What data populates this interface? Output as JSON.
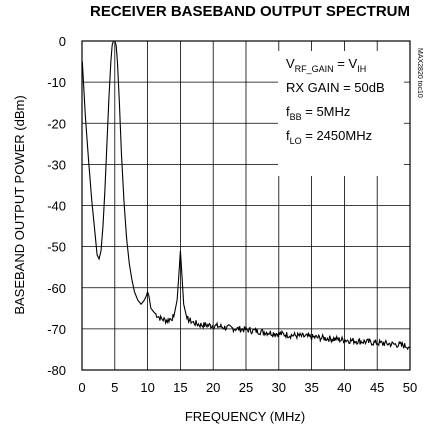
{
  "chart_data": {
    "type": "line",
    "title": "RECEIVER BASEBAND OUTPUT SPECTRUM",
    "xlabel": "FREQUENCY (MHz)",
    "ylabel": "BASEBAND OUTPUT POWER (dBm)",
    "xlim": [
      0,
      50
    ],
    "ylim": [
      -80,
      0
    ],
    "xticks": [
      "0",
      "5",
      "10",
      "15",
      "20",
      "25",
      "30",
      "35",
      "40",
      "45",
      "50"
    ],
    "yticks": [
      "0",
      "-10",
      "-20",
      "-30",
      "-40",
      "-50",
      "-60",
      "-70",
      "-80"
    ],
    "grid": true,
    "annotations": [
      {
        "main": "V",
        "sub": "RF_GAIN",
        "mid": " = V",
        "sub2": "IH",
        "tail": ""
      },
      {
        "main": "RX GAIN = 50dB",
        "sub": "",
        "mid": "",
        "sub2": "",
        "tail": ""
      },
      {
        "main": "f",
        "sub": "BB",
        "mid": " = 5MHz",
        "sub2": "",
        "tail": ""
      },
      {
        "main": "f",
        "sub": "LO",
        "mid": " = 2450MHz",
        "sub2": "",
        "tail": ""
      }
    ],
    "side_label": "MAX2820 toc10",
    "series": [
      {
        "x": [
          0.05,
          0.5,
          1.0,
          1.5,
          2.0,
          2.3,
          2.6,
          2.9,
          3.2,
          3.5,
          3.8,
          4.1,
          4.4,
          4.6,
          4.8,
          5.0,
          5.2,
          5.4,
          5.7,
          6.0,
          6.4,
          6.8,
          7.2,
          7.6,
          8.0,
          8.5,
          9.0,
          9.5,
          9.8,
          10.0,
          10.2,
          10.5,
          11.0,
          12.0,
          13.0,
          14.0,
          14.5,
          14.8,
          15.0,
          15.2,
          15.5,
          16.0,
          17.0,
          18.0,
          20.0,
          22.0,
          25.0,
          28.0,
          30.0,
          33.0,
          35.0,
          38.0,
          40.0,
          43.0,
          45.0,
          48.0,
          50.0
        ],
        "y": [
          -5,
          -18,
          -29,
          -39,
          -47,
          -52,
          -53,
          -51,
          -45,
          -36,
          -25,
          -14,
          -5,
          -1,
          0,
          0,
          -1,
          -5,
          -15,
          -27,
          -39,
          -48,
          -54,
          -58,
          -61,
          -63,
          -64,
          -63,
          -62,
          -61,
          -62,
          -65,
          -66,
          -67.5,
          -68,
          -67,
          -63,
          -56,
          -51,
          -56,
          -64,
          -67.5,
          -68.5,
          -69,
          -69.2,
          -69.7,
          -70.2,
          -70.8,
          -71.2,
          -71.7,
          -72,
          -72.4,
          -72.7,
          -73.1,
          -73.4,
          -73.8,
          -74.3
        ]
      }
    ]
  }
}
